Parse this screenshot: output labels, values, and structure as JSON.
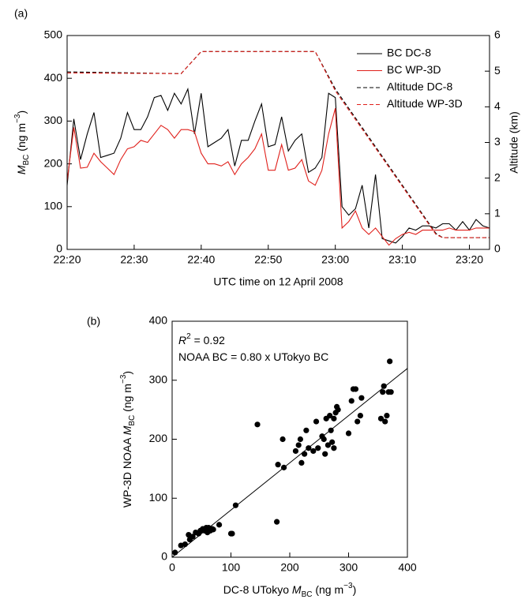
{
  "chart_data": [
    {
      "type": "line",
      "panel_label": "(a)",
      "x": [
        "22:20",
        "22:21",
        "22:22",
        "22:23",
        "22:24",
        "22:25",
        "22:26",
        "22:27",
        "22:28",
        "22:29",
        "22:30",
        "22:31",
        "22:32",
        "22:33",
        "22:34",
        "22:35",
        "22:36",
        "22:37",
        "22:38",
        "22:39",
        "22:40",
        "22:41",
        "22:42",
        "22:43",
        "22:44",
        "22:45",
        "22:46",
        "22:47",
        "22:48",
        "22:49",
        "22:50",
        "22:51",
        "22:52",
        "22:53",
        "22:54",
        "22:55",
        "22:56",
        "22:57",
        "22:58",
        "22:59",
        "23:00",
        "23:01",
        "23:02",
        "23:03",
        "23:04",
        "23:05",
        "23:06",
        "23:07",
        "23:08",
        "23:09",
        "23:10",
        "23:11",
        "23:12",
        "23:13",
        "23:14",
        "23:15",
        "23:16",
        "23:17",
        "23:18",
        "23:19",
        "23:20",
        "23:21",
        "23:22",
        "23:23"
      ],
      "xlim": [
        "22:20",
        "23:23"
      ],
      "xticks": [
        "22:20",
        "22:30",
        "22:40",
        "22:50",
        "23:00",
        "23:10",
        "23:20"
      ],
      "ylim": [
        0,
        500
      ],
      "yticks": [
        0,
        100,
        200,
        300,
        400,
        500
      ],
      "y2lim": [
        0,
        6
      ],
      "y2ticks": [
        0,
        1,
        2,
        3,
        4,
        5,
        6
      ],
      "xlabel": "UTC time on 12 April 2008",
      "ylabel": [
        {
          "text": "M",
          "style": "italic"
        },
        {
          "text": "BC",
          "style": "sub"
        },
        {
          "text": " (ng m",
          "style": "normal"
        },
        {
          "text": "−3",
          "style": "sup"
        },
        {
          "text": ")",
          "style": "normal"
        }
      ],
      "y2label": "Altitude (km)",
      "legend": "upper right",
      "series": [
        {
          "name": "BC DC-8",
          "color": "#000000",
          "values": [
            150,
            305,
            210,
            270,
            320,
            215,
            220,
            225,
            260,
            320,
            280,
            280,
            310,
            355,
            360,
            325,
            365,
            340,
            375,
            270,
            365,
            240,
            250,
            260,
            280,
            195,
            255,
            255,
            300,
            340,
            240,
            245,
            310,
            230,
            255,
            270,
            180,
            190,
            215,
            365,
            355,
            100,
            80,
            95,
            150,
            50,
            175,
            25,
            20,
            15,
            30,
            50,
            45,
            55,
            55,
            50,
            60,
            60,
            45,
            65,
            45,
            70,
            55,
            50
          ]
        },
        {
          "name": "BC WP-3D",
          "color": "#e0201b",
          "values": [
            160,
            285,
            190,
            192,
            225,
            205,
            190,
            175,
            210,
            235,
            240,
            255,
            250,
            270,
            290,
            280,
            260,
            280,
            280,
            275,
            225,
            200,
            200,
            195,
            205,
            175,
            200,
            215,
            235,
            270,
            185,
            185,
            245,
            185,
            190,
            210,
            160,
            150,
            185,
            270,
            330,
            50,
            65,
            90,
            50,
            35,
            50,
            30,
            10,
            25,
            35,
            40,
            35,
            45,
            45,
            45,
            45,
            50,
            45,
            45,
            45,
            50,
            50,
            50
          ]
        },
        {
          "name": "Altitude DC-8",
          "color": "#000000",
          "dash": true,
          "axis": "y2",
          "x": [
            "22:20",
            "22:37",
            "22:40",
            "22:57",
            "23:00",
            "23:15",
            "23:16",
            "23:23"
          ],
          "values": [
            4.98,
            4.93,
            5.55,
            5.55,
            4.5,
            0.45,
            0.33,
            0.33
          ]
        },
        {
          "name": "Altitude WP-3D",
          "color": "#e0201b",
          "dash": true,
          "axis": "y2",
          "x": [
            "22:20",
            "22:37",
            "22:40",
            "22:57",
            "23:00",
            "23:15",
            "23:16",
            "23:23"
          ],
          "values": [
            4.95,
            4.93,
            5.55,
            5.55,
            4.45,
            0.42,
            0.33,
            0.33
          ]
        }
      ]
    },
    {
      "type": "scatter",
      "panel_label": "(b)",
      "x": [
        5,
        15,
        22,
        28,
        30,
        35,
        40,
        45,
        48,
        52,
        55,
        58,
        60,
        62,
        65,
        68,
        70,
        80,
        100,
        102,
        108,
        145,
        178,
        180,
        188,
        190,
        210,
        215,
        218,
        220,
        225,
        228,
        232,
        240,
        245,
        248,
        255,
        258,
        260,
        262,
        265,
        268,
        270,
        272,
        275,
        278,
        280,
        282,
        275,
        300,
        305,
        308,
        312,
        315,
        320,
        322,
        355,
        358,
        360,
        362,
        365,
        368,
        370,
        372
      ],
      "y": [
        8,
        20,
        22,
        38,
        30,
        35,
        42,
        40,
        45,
        48,
        45,
        50,
        42,
        50,
        45,
        48,
        47,
        55,
        40,
        40,
        88,
        225,
        60,
        157,
        200,
        152,
        180,
        190,
        200,
        160,
        175,
        215,
        185,
        180,
        230,
        185,
        205,
        200,
        175,
        235,
        190,
        240,
        215,
        195,
        185,
        245,
        255,
        250,
        235,
        210,
        265,
        285,
        285,
        230,
        240,
        270,
        235,
        280,
        290,
        230,
        240,
        280,
        332,
        280
      ],
      "color": "#000000",
      "xlim": [
        0,
        400
      ],
      "xticks": [
        0,
        100,
        200,
        300,
        400
      ],
      "ylim": [
        0,
        400
      ],
      "yticks": [
        0,
        100,
        200,
        300,
        400
      ],
      "xlabel": [
        {
          "text": "DC-8 UTokyo ",
          "style": "normal"
        },
        {
          "text": "M",
          "style": "italic"
        },
        {
          "text": "BC",
          "style": "sub"
        },
        {
          "text": " (ng m",
          "style": "normal"
        },
        {
          "text": "−3",
          "style": "sup"
        },
        {
          "text": ")",
          "style": "normal"
        }
      ],
      "ylabel": [
        {
          "text": "WP-3D NOAA ",
          "style": "normal"
        },
        {
          "text": "M",
          "style": "italic"
        },
        {
          "text": "BC",
          "style": "sub"
        },
        {
          "text": " (ng m",
          "style": "normal"
        },
        {
          "text": "−3",
          "style": "sup"
        },
        {
          "text": ")",
          "style": "normal"
        }
      ],
      "annotations": [
        [
          {
            "text": "R",
            "style": "italic"
          },
          {
            "text": "2",
            "style": "sup"
          },
          {
            "text": " = 0.92",
            "style": "normal"
          }
        ],
        [
          {
            "text": "NOAA BC = 0.80 x UTokyo BC",
            "style": "normal"
          }
        ]
      ],
      "fit": {
        "x": [
          0,
          400
        ],
        "y": [
          0,
          320
        ],
        "color": "#000000"
      }
    }
  ]
}
